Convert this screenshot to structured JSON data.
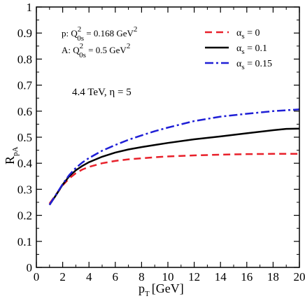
{
  "chart_data": {
    "type": "line",
    "xlabel": "p",
    "xlabel_sub": "T",
    "xlabel_unit": "[GeV]",
    "ylabel": "R",
    "ylabel_sub": "pA",
    "xlim": [
      0,
      20
    ],
    "ylim": [
      0,
      1
    ],
    "xticks": [
      "0",
      "2",
      "4",
      "6",
      "8",
      "10",
      "12",
      "14",
      "16",
      "18",
      "20"
    ],
    "yticks": [
      "0",
      "0.1",
      "0.2",
      "0.3",
      "0.4",
      "0.5",
      "0.6",
      "0.7",
      "0.8",
      "0.9",
      "1"
    ],
    "legend_position": "top-right",
    "annotations": {
      "p_line": {
        "prefix": "p:  Q",
        "sup": "2",
        "sub": "0s",
        "suffix": " = 0.168 GeV",
        "unit_sup": "2"
      },
      "a_line": {
        "prefix": "A:  Q",
        "sup": "2",
        "sub": "0s",
        "suffix": " = 0.5 GeV",
        "unit_sup": "2"
      },
      "energy": "4.4 TeV,  η = 5"
    },
    "series": [
      {
        "name": "α s = 0",
        "label_alpha": "α",
        "label_sub": "s",
        "label_value": " = 0",
        "color": "#e8202a",
        "dash": "10,6",
        "x": [
          1,
          1.5,
          2,
          2.5,
          3,
          3.5,
          4,
          5,
          6,
          7,
          8,
          9,
          10,
          12,
          14,
          16,
          18,
          20
        ],
        "y": [
          0.245,
          0.28,
          0.315,
          0.342,
          0.362,
          0.376,
          0.386,
          0.4,
          0.409,
          0.415,
          0.419,
          0.423,
          0.426,
          0.43,
          0.433,
          0.435,
          0.436,
          0.436
        ]
      },
      {
        "name": "α s = 0.1",
        "label_alpha": "α",
        "label_sub": "s",
        "label_value": " = 0.1",
        "color": "#000000",
        "dash": "",
        "x": [
          1,
          1.5,
          2,
          2.5,
          3,
          3.5,
          4,
          5,
          6,
          7,
          8,
          9,
          10,
          12,
          14,
          16,
          18,
          19,
          20
        ],
        "y": [
          0.24,
          0.278,
          0.318,
          0.35,
          0.373,
          0.39,
          0.404,
          0.425,
          0.441,
          0.453,
          0.462,
          0.47,
          0.478,
          0.492,
          0.503,
          0.515,
          0.527,
          0.532,
          0.533
        ]
      },
      {
        "name": "α s = 0.15",
        "label_alpha": "α",
        "label_sub": "s",
        "label_value": " = 0.15",
        "color": "#1f1fd6",
        "dash": "12,4,3,4",
        "x": [
          1,
          1.5,
          2,
          2.5,
          3,
          3.5,
          4,
          5,
          6,
          7,
          8,
          9,
          10,
          12,
          14,
          16,
          18,
          20
        ],
        "y": [
          0.24,
          0.28,
          0.32,
          0.355,
          0.382,
          0.403,
          0.42,
          0.448,
          0.47,
          0.49,
          0.507,
          0.523,
          0.537,
          0.562,
          0.579,
          0.59,
          0.6,
          0.607
        ]
      }
    ]
  }
}
